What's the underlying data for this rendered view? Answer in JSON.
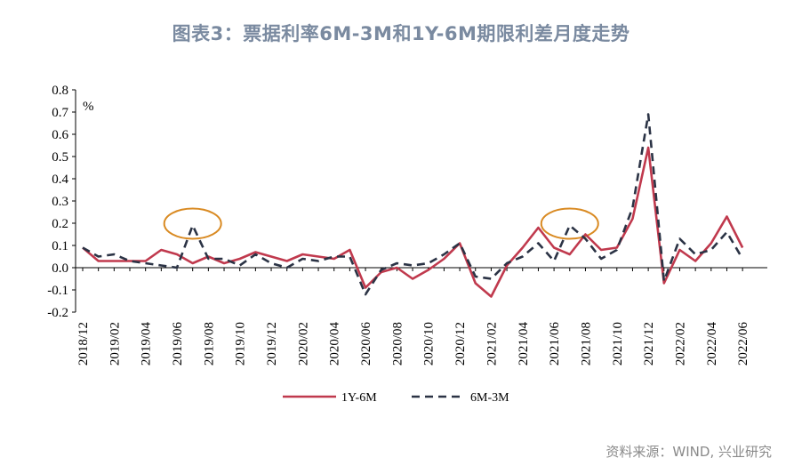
{
  "title": "图表3：票据利率6M-3M和1Y-6M期限利差月度走势",
  "source": "资料来源：WIND, 兴业研究",
  "chart_data": {
    "type": "line",
    "unit_label": "%",
    "ylim": [
      -0.2,
      0.8
    ],
    "yticks": [
      "0.8",
      "0.7",
      "0.6",
      "0.5",
      "0.4",
      "0.3",
      "0.2",
      "0.1",
      "0.0",
      "-0.1",
      "-0.2"
    ],
    "x": [
      "2018/12",
      "2019/01",
      "2019/02",
      "2019/03",
      "2019/04",
      "2019/05",
      "2019/06",
      "2019/07",
      "2019/08",
      "2019/09",
      "2019/10",
      "2019/11",
      "2019/12",
      "2020/01",
      "2020/02",
      "2020/03",
      "2020/04",
      "2020/05",
      "2020/06",
      "2020/07",
      "2020/08",
      "2020/09",
      "2020/10",
      "2020/11",
      "2020/12",
      "2021/01",
      "2021/02",
      "2021/03",
      "2021/04",
      "2021/05",
      "2021/06",
      "2021/07",
      "2021/08",
      "2021/09",
      "2021/10",
      "2021/11",
      "2021/12",
      "2022/01",
      "2022/02",
      "2022/03",
      "2022/04",
      "2022/05",
      "2022/06"
    ],
    "xtick_labels": [
      "2018/12",
      "2019/02",
      "2019/04",
      "2019/06",
      "2019/08",
      "2019/10",
      "2019/12",
      "2020/02",
      "2020/04",
      "2020/06",
      "2020/08",
      "2020/10",
      "2020/12",
      "2021/02",
      "2021/04",
      "2021/06",
      "2021/08",
      "2021/10",
      "2021/12",
      "2022/02",
      "2022/04",
      "2022/06"
    ],
    "series": [
      {
        "name": "1Y-6M",
        "color": "#c0394d",
        "style": "solid",
        "values": [
          0.09,
          0.03,
          0.03,
          0.03,
          0.03,
          0.08,
          0.06,
          0.02,
          0.05,
          0.02,
          0.04,
          0.07,
          0.05,
          0.03,
          0.06,
          0.05,
          0.04,
          0.08,
          -0.09,
          -0.02,
          0.0,
          -0.05,
          -0.01,
          0.04,
          0.11,
          -0.07,
          -0.13,
          0.01,
          0.09,
          0.18,
          0.09,
          0.06,
          0.15,
          0.08,
          0.09,
          0.22,
          0.54,
          -0.07,
          0.08,
          0.03,
          0.11,
          0.23,
          0.09
        ]
      },
      {
        "name": "6M-3M",
        "color": "#2b3345",
        "style": "dashed",
        "values": [
          0.09,
          0.05,
          0.06,
          0.03,
          0.02,
          0.01,
          0.0,
          0.19,
          0.04,
          0.04,
          0.01,
          0.06,
          0.02,
          0.0,
          0.04,
          0.03,
          0.05,
          0.05,
          -0.12,
          -0.01,
          0.02,
          0.01,
          0.02,
          0.06,
          0.11,
          -0.04,
          -0.05,
          0.02,
          0.05,
          0.11,
          0.03,
          0.19,
          0.13,
          0.04,
          0.08,
          0.27,
          0.69,
          -0.06,
          0.13,
          0.06,
          0.08,
          0.16,
          0.04
        ]
      }
    ],
    "annotations": [
      {
        "type": "ellipse",
        "color": "#d98a22",
        "at_x": "2019/07",
        "at_y": 0.19
      },
      {
        "type": "ellipse",
        "color": "#d98a22",
        "at_x": "2021/07",
        "at_y": 0.19
      }
    ],
    "legend_position": "bottom-center",
    "grid": false
  }
}
